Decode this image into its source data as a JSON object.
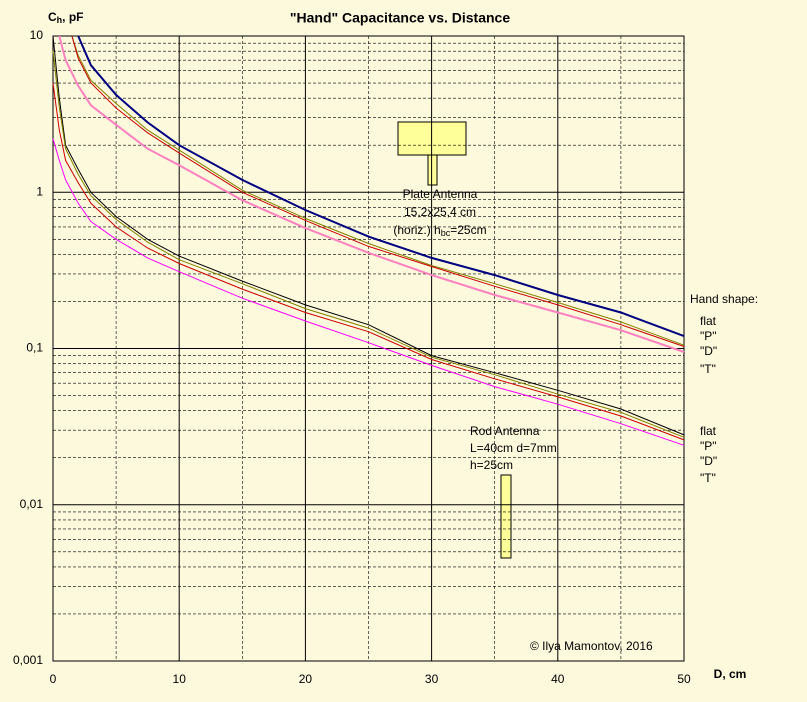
{
  "chart_data": {
    "type": "line",
    "title": "\"Hand\" Capacitance  vs.  Distance",
    "ylabel": [
      "C",
      "h",
      ", pF"
    ],
    "xlabel": "D, cm",
    "log_y": true,
    "grid": true,
    "minor_grid": true,
    "xlim": [
      0,
      50
    ],
    "xticks": [
      0,
      10,
      20,
      30,
      40,
      50
    ],
    "ylim": [
      0.001,
      10
    ],
    "yticks": [
      10,
      1,
      {
        "value": 0.1,
        "label": "0,1"
      },
      {
        "value": 0.01,
        "label": "0,01"
      },
      {
        "value": 0.001,
        "label": "0,001"
      }
    ],
    "legend_title": "Hand shape:",
    "series": [
      {
        "name": "flat",
        "color": "#000080",
        "width": 2,
        "x": [
          2,
          3,
          5,
          7.5,
          10,
          15,
          20,
          25,
          30,
          35,
          40,
          45,
          50
        ],
        "values": [
          10,
          6.5,
          4.2,
          2.8,
          2.0,
          1.2,
          0.77,
          0.52,
          0.38,
          0.295,
          0.22,
          0.17,
          0.12
        ]
      },
      {
        "name": "\"P\"",
        "color": "#808000",
        "width": 1,
        "x": [
          1.5,
          2,
          3,
          5,
          7.5,
          10,
          15,
          20,
          25,
          30,
          35,
          40,
          45,
          50
        ],
        "values": [
          10,
          7.5,
          5.2,
          3.7,
          2.5,
          1.86,
          1.03,
          0.68,
          0.47,
          0.34,
          0.26,
          0.197,
          0.148,
          0.105
        ]
      },
      {
        "name": "\"D\"",
        "color": "#cc0000",
        "width": 1,
        "x": [
          1.5,
          2,
          3,
          5,
          7.5,
          10,
          15,
          20,
          25,
          30,
          35,
          40,
          45,
          50
        ],
        "values": [
          10,
          7.2,
          5,
          3.46,
          2.4,
          1.78,
          1.0,
          0.66,
          0.45,
          0.335,
          0.25,
          0.19,
          0.142,
          0.103
        ]
      },
      {
        "name": "\"T\"",
        "color": "#ff80c0",
        "width": 2,
        "x": [
          0.5,
          1,
          2,
          3,
          5,
          7.5,
          10,
          15,
          20,
          25,
          30,
          35,
          40,
          45,
          50
        ],
        "values": [
          10,
          7,
          4.8,
          3.6,
          2.7,
          1.9,
          1.49,
          0.89,
          0.59,
          0.41,
          0.295,
          0.22,
          0.17,
          0.131,
          0.095
        ]
      },
      {
        "name": "flat",
        "color": "#000080",
        "line_color": "#000000",
        "width": 1,
        "x": [
          0,
          0.5,
          1,
          2,
          3,
          5,
          7.5,
          10,
          15,
          20,
          25,
          30,
          35,
          40,
          45,
          50
        ],
        "values": [
          10,
          4,
          2,
          1.4,
          1.0,
          0.7,
          0.5,
          0.39,
          0.27,
          0.19,
          0.142,
          0.09,
          0.07,
          0.054,
          0.041,
          0.028
        ]
      },
      {
        "name": "\"P\"",
        "color": "#808000",
        "width": 1,
        "x": [
          0,
          0.5,
          1,
          2,
          3,
          5,
          7.5,
          10,
          15,
          20,
          25,
          30,
          35,
          40,
          45,
          50
        ],
        "values": [
          8,
          3.5,
          1.9,
          1.3,
          0.95,
          0.67,
          0.48,
          0.37,
          0.26,
          0.18,
          0.135,
          0.088,
          0.068,
          0.051,
          0.039,
          0.027
        ]
      },
      {
        "name": "\"D\"",
        "color": "#cc0000",
        "width": 1,
        "x": [
          0,
          0.5,
          1,
          2,
          3,
          5,
          7.5,
          10,
          15,
          20,
          25,
          30,
          35,
          40,
          45,
          50
        ],
        "values": [
          5,
          2.5,
          1.6,
          1.15,
          0.85,
          0.6,
          0.44,
          0.35,
          0.24,
          0.17,
          0.128,
          0.085,
          0.064,
          0.049,
          0.037,
          0.026
        ]
      },
      {
        "name": "\"T\"",
        "color": "#ff00ff",
        "width": 1,
        "x": [
          0,
          0.5,
          1,
          2,
          3,
          5,
          7.5,
          10,
          15,
          20,
          25,
          30,
          35,
          40,
          45,
          50
        ],
        "values": [
          2.2,
          1.6,
          1.2,
          0.85,
          0.65,
          0.5,
          0.38,
          0.31,
          0.21,
          0.15,
          0.109,
          0.078,
          0.057,
          0.044,
          0.033,
          0.024
        ]
      }
    ],
    "annotations": [
      [
        "Plate Antenna"
      ],
      [
        "15,2x25,4 cm"
      ],
      [
        "(horiz.) h",
        "bc",
        "=25cm"
      ],
      [
        "Rod Antenna"
      ],
      [
        "L=40cm d=7mm"
      ],
      [
        "h=25cm"
      ],
      [
        "© Ilya Mamontov, 2016"
      ]
    ]
  }
}
